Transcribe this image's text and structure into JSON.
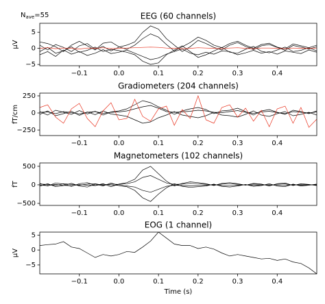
{
  "chart_data": [
    {
      "type": "line",
      "title": "EEG (60 channels)",
      "ylabel": "µV",
      "annotation": {
        "base": "N",
        "sub": "ave",
        "rest": "=55"
      },
      "x": [
        -0.2,
        -0.18,
        -0.16,
        -0.14,
        -0.12,
        -0.1,
        -0.08,
        -0.06,
        -0.04,
        -0.02,
        0,
        0.02,
        0.04,
        0.06,
        0.08,
        0.1,
        0.12,
        0.14,
        0.16,
        0.18,
        0.2,
        0.22,
        0.24,
        0.26,
        0.28,
        0.3,
        0.32,
        0.34,
        0.36,
        0.38,
        0.4,
        0.42,
        0.44,
        0.46,
        0.48,
        0.5
      ],
      "xlim": [
        -0.2,
        0.5
      ],
      "xticks": [
        {
          "value": -0.1,
          "label": "−0.1"
        },
        {
          "value": 0,
          "label": "0.0"
        },
        0.1,
        0.2,
        0.3,
        0.4
      ],
      "ylim": [
        -5.4,
        7.8
      ],
      "yticks": [
        {
          "value": -5,
          "label": "−5"
        },
        0,
        5
      ],
      "series": [
        {
          "color": "#000000",
          "values": [
            1,
            -0.5,
            1.2,
            0.3,
            -1,
            0.8,
            1.5,
            -0.3,
            0.6,
            -0.8,
            0.4,
            1,
            2,
            5,
            7,
            6,
            3,
            1,
            -1,
            0.5,
            2.5,
            1.5,
            0.3,
            -0.5,
            1,
            1.8,
            0.6,
            -0.4,
            0.8,
            1.2,
            0.3,
            -0.6,
            0.9,
            0.4,
            -0.2,
            0.5
          ]
        },
        {
          "color": "#000000",
          "values": [
            -1,
            0.3,
            -1.5,
            -0.8,
            0.5,
            -1.2,
            -0.6,
            0.4,
            -1,
            -0.3,
            -0.7,
            -1.2,
            -2,
            -4,
            -5,
            -4.5,
            -2,
            -0.5,
            0.8,
            -1,
            -2.8,
            -2,
            -0.8,
            0.3,
            -1.2,
            -1.5,
            -0.3,
            0.6,
            -0.9,
            -1.4,
            -0.5,
            0.4,
            -1,
            -0.6,
            0.2,
            -0.8
          ]
        },
        {
          "color": "#000000",
          "values": [
            2,
            1.5,
            0.5,
            -1,
            1,
            2.2,
            0.8,
            -0.5,
            1.6,
            2,
            0.5,
            -0.3,
            1,
            3,
            4.5,
            3.5,
            1.2,
            -0.8,
            0.5,
            1.8,
            3.5,
            2.5,
            1,
            0.2,
            1.5,
            2.2,
            1,
            0,
            1.2,
            1.6,
            0.4,
            -0.2,
            1.4,
            0.8,
            0.2,
            1
          ]
        },
        {
          "color": "#000000",
          "values": [
            -2,
            -1,
            -2.5,
            -0.5,
            -1.8,
            -1,
            -2.2,
            -1.5,
            -0.4,
            -1.6,
            -1.2,
            -0.5,
            -1.5,
            -2.5,
            -3.5,
            -3,
            -1.8,
            -1,
            -0.2,
            -1.5,
            -2,
            -1.2,
            -1.8,
            -0.8,
            -1,
            -2,
            -1.4,
            -0.6,
            -1.5,
            -1,
            -1.8,
            -0.8,
            -1.2,
            -1.6,
            -0.5,
            -1.2
          ]
        },
        {
          "color": "#e8301c",
          "values": [
            0,
            0.2,
            -0.1,
            0.1,
            0,
            -0.2,
            0.1,
            0,
            0.2,
            -0.1,
            0,
            0.1,
            0.2,
            0.3,
            0.4,
            0.3,
            0.1,
            0,
            -0.1,
            0,
            0.2,
            0.1,
            0,
            -0.1,
            0.1,
            0.2,
            0,
            -0.1,
            0.1,
            0.1,
            0,
            -0.1,
            0.1,
            0,
            0,
            0.1
          ]
        }
      ]
    },
    {
      "type": "line",
      "title": "Gradiometers (204 channels)",
      "ylabel": "fT/cm",
      "x": [
        -0.2,
        -0.18,
        -0.16,
        -0.14,
        -0.12,
        -0.1,
        -0.08,
        -0.06,
        -0.04,
        -0.02,
        0,
        0.02,
        0.04,
        0.06,
        0.08,
        0.1,
        0.12,
        0.14,
        0.16,
        0.18,
        0.2,
        0.22,
        0.24,
        0.26,
        0.28,
        0.3,
        0.32,
        0.34,
        0.36,
        0.38,
        0.4,
        0.42,
        0.44,
        0.46,
        0.48,
        0.5
      ],
      "xlim": [
        -0.2,
        0.5
      ],
      "xticks": [
        {
          "value": -0.1,
          "label": "−0.1"
        },
        {
          "value": 0,
          "label": "0.0"
        },
        0.1,
        0.2,
        0.3,
        0.4
      ],
      "ylim": [
        -330,
        290
      ],
      "yticks": [
        {
          "value": -250,
          "label": "−250"
        },
        0,
        250
      ],
      "series": [
        {
          "color": "#000000",
          "values": [
            20,
            -30,
            40,
            10,
            -20,
            35,
            -15,
            25,
            -30,
            15,
            30,
            60,
            120,
            180,
            150,
            90,
            40,
            -20,
            30,
            60,
            80,
            50,
            -10,
            30,
            40,
            70,
            20,
            -30,
            30,
            50,
            10,
            -20,
            40,
            20,
            -10,
            30
          ]
        },
        {
          "color": "#000000",
          "values": [
            -20,
            30,
            -40,
            -10,
            25,
            -35,
            15,
            -25,
            30,
            -15,
            -30,
            -50,
            -100,
            -150,
            -130,
            -70,
            -30,
            20,
            -30,
            -50,
            -70,
            -40,
            10,
            -30,
            -40,
            -60,
            -20,
            30,
            -30,
            -50,
            -10,
            20,
            -40,
            -20,
            10,
            -30
          ]
        },
        {
          "color": "#000000",
          "values": [
            10,
            15,
            -10,
            20,
            5,
            -15,
            10,
            20,
            -5,
            10,
            15,
            30,
            60,
            90,
            110,
            70,
            20,
            10,
            15,
            25,
            40,
            30,
            10,
            5,
            20,
            35,
            10,
            -5,
            15,
            25,
            5,
            -10,
            20,
            10,
            0,
            15
          ]
        },
        {
          "color": "#e8301c",
          "values": [
            80,
            120,
            -60,
            -150,
            60,
            140,
            -80,
            -200,
            30,
            150,
            -100,
            -80,
            200,
            -50,
            -120,
            60,
            100,
            -180,
            50,
            -80,
            250,
            -100,
            -150,
            80,
            120,
            -60,
            70,
            -120,
            40,
            -200,
            60,
            100,
            -150,
            80,
            -210,
            -90
          ]
        }
      ]
    },
    {
      "type": "line",
      "title": "Magnetometers (102 channels)",
      "ylabel": "fT",
      "x": [
        -0.2,
        -0.18,
        -0.16,
        -0.14,
        -0.12,
        -0.1,
        -0.08,
        -0.06,
        -0.04,
        -0.02,
        0,
        0.02,
        0.04,
        0.06,
        0.08,
        0.1,
        0.12,
        0.14,
        0.16,
        0.18,
        0.2,
        0.22,
        0.24,
        0.26,
        0.28,
        0.3,
        0.32,
        0.34,
        0.36,
        0.38,
        0.4,
        0.42,
        0.44,
        0.46,
        0.48,
        0.5
      ],
      "xlim": [
        -0.2,
        0.5
      ],
      "xticks": [
        {
          "value": -0.1,
          "label": "−0.1"
        },
        {
          "value": 0,
          "label": "0.0"
        },
        0.1,
        0.2,
        0.3,
        0.4
      ],
      "ylim": [
        -555,
        590
      ],
      "yticks": [
        {
          "value": -500,
          "label": "−500"
        },
        0,
        500
      ],
      "series": [
        {
          "color": "#000000",
          "values": [
            40,
            -30,
            50,
            20,
            -40,
            30,
            60,
            -20,
            30,
            -50,
            20,
            60,
            150,
            400,
            500,
            300,
            100,
            -30,
            40,
            80,
            60,
            30,
            -20,
            40,
            60,
            30,
            -10,
            40,
            20,
            -30,
            30,
            50,
            -20,
            30,
            10,
            -20
          ]
        },
        {
          "color": "#000000",
          "values": [
            -40,
            30,
            -50,
            -20,
            40,
            -30,
            -60,
            20,
            -30,
            50,
            -20,
            -50,
            -150,
            -350,
            -450,
            -250,
            -80,
            30,
            -40,
            -70,
            -50,
            -30,
            20,
            -40,
            -60,
            -30,
            10,
            -40,
            -20,
            30,
            -30,
            -50,
            20,
            -30,
            -10,
            20
          ]
        },
        {
          "color": "#000000",
          "values": [
            20,
            10,
            -20,
            30,
            10,
            -10,
            20,
            30,
            -10,
            20,
            10,
            30,
            80,
            200,
            250,
            150,
            50,
            10,
            20,
            40,
            30,
            15,
            -10,
            20,
            30,
            15,
            -5,
            20,
            10,
            -15,
            15,
            25,
            -10,
            15,
            5,
            -10
          ]
        },
        {
          "color": "#000000",
          "values": [
            -10,
            -20,
            10,
            -15,
            -25,
            5,
            -10,
            -20,
            15,
            -5,
            -15,
            -30,
            -60,
            -150,
            -200,
            -120,
            -40,
            -10,
            -20,
            -30,
            -20,
            -10,
            5,
            -20,
            -25,
            -10,
            0,
            -15,
            -10,
            5,
            -15,
            -20,
            5,
            -10,
            0,
            5
          ]
        }
      ]
    },
    {
      "type": "line",
      "title": "EOG (1 channel)",
      "ylabel": "µV",
      "xlabel": "Time (s)",
      "x": [
        -0.2,
        -0.18,
        -0.16,
        -0.14,
        -0.12,
        -0.1,
        -0.08,
        -0.06,
        -0.04,
        -0.02,
        0,
        0.02,
        0.04,
        0.06,
        0.08,
        0.1,
        0.12,
        0.14,
        0.16,
        0.18,
        0.2,
        0.22,
        0.24,
        0.26,
        0.28,
        0.3,
        0.32,
        0.34,
        0.36,
        0.38,
        0.4,
        0.42,
        0.44,
        0.46,
        0.48,
        0.5
      ],
      "xlim": [
        -0.2,
        0.5
      ],
      "xticks": [
        {
          "value": -0.1,
          "label": "−0.1"
        },
        {
          "value": 0,
          "label": "0.0"
        },
        0.1,
        0.2,
        0.3,
        0.4
      ],
      "ylim": [
        -8,
        6
      ],
      "yticks": [
        {
          "value": -5,
          "label": "−5"
        },
        0,
        5
      ],
      "series": [
        {
          "color": "#000000",
          "values": [
            1.5,
            1.8,
            2,
            2.8,
            1,
            0.5,
            -1,
            -2.5,
            -1.5,
            -2,
            -1.5,
            -0.5,
            -0.8,
            1,
            3,
            6,
            4,
            2,
            1.5,
            1.5,
            0.5,
            1,
            0.3,
            -1,
            -2,
            -1.5,
            -2,
            -2.5,
            -3,
            -2.8,
            -3.5,
            -3,
            -4,
            -4.5,
            -6,
            -8
          ]
        }
      ]
    }
  ]
}
